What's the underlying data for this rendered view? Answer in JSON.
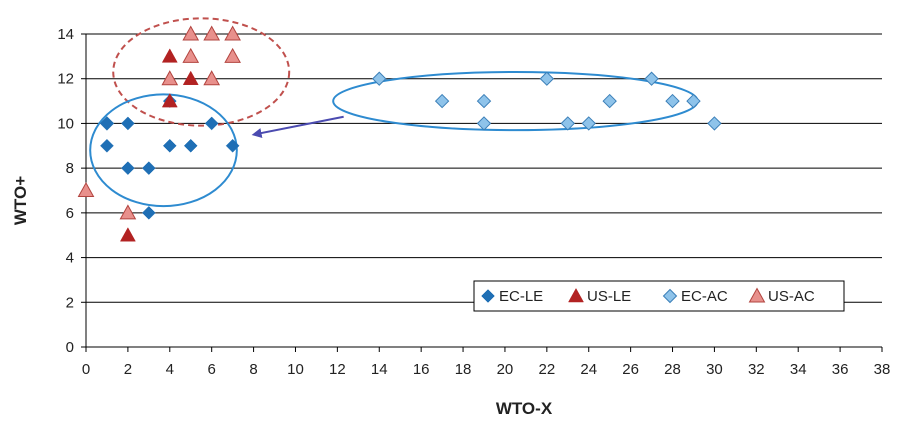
{
  "chart_data": {
    "type": "scatter",
    "xlabel": "WTO-X",
    "ylabel": "WTO+",
    "xlim": [
      0,
      38
    ],
    "ylim": [
      0,
      14
    ],
    "x_ticks": [
      0,
      2,
      4,
      6,
      8,
      10,
      12,
      14,
      16,
      18,
      20,
      22,
      24,
      26,
      28,
      30,
      32,
      34,
      36,
      38
    ],
    "y_ticks": [
      0,
      2,
      4,
      6,
      8,
      10,
      12,
      14
    ],
    "grid": "horizontal",
    "legend_placement": "bottom-right",
    "series": [
      {
        "name": "EC-LE",
        "marker": "diamond",
        "color": "#1f6fb5",
        "points": [
          [
            1,
            9
          ],
          [
            1,
            10
          ],
          [
            2,
            10
          ],
          [
            2,
            8
          ],
          [
            3,
            8
          ],
          [
            3,
            6
          ],
          [
            4,
            9
          ],
          [
            5,
            9
          ],
          [
            6,
            10
          ],
          [
            7,
            9
          ],
          [
            4,
            11
          ]
        ]
      },
      {
        "name": "US-LE",
        "marker": "triangle",
        "color": "#b22222",
        "points": [
          [
            2,
            5
          ],
          [
            4,
            13
          ],
          [
            4,
            11
          ],
          [
            5,
            12
          ]
        ]
      },
      {
        "name": "EC-AC",
        "marker": "diamond-hollow",
        "color": "#8ec3ea",
        "points": [
          [
            1,
            10
          ],
          [
            14,
            12
          ],
          [
            17,
            11
          ],
          [
            19,
            11
          ],
          [
            19,
            10
          ],
          [
            22,
            12
          ],
          [
            23,
            10
          ],
          [
            24,
            10
          ],
          [
            25,
            11
          ],
          [
            27,
            12
          ],
          [
            28,
            11
          ],
          [
            29,
            11
          ],
          [
            30,
            10
          ]
        ]
      },
      {
        "name": "US-AC",
        "marker": "triangle-hollow",
        "color": "#e8908c",
        "points": [
          [
            0,
            7
          ],
          [
            2,
            6
          ],
          [
            4,
            12
          ],
          [
            5,
            14
          ],
          [
            5,
            13
          ],
          [
            6,
            14
          ],
          [
            6,
            12
          ],
          [
            7,
            14
          ],
          [
            7,
            13
          ]
        ]
      }
    ],
    "annotations": [
      {
        "kind": "ellipse-dashed",
        "color": "#c0504d",
        "center": [
          5.5,
          12.3
        ],
        "radius": [
          4.2,
          2.4
        ]
      },
      {
        "kind": "ellipse",
        "color": "#2e8bd0",
        "center": [
          3.7,
          8.8
        ],
        "radius": [
          3.5,
          2.5
        ]
      },
      {
        "kind": "ellipse",
        "color": "#2e8bd0",
        "center": [
          20.5,
          11.0
        ],
        "radius": [
          8.7,
          1.3
        ]
      },
      {
        "kind": "arrow",
        "color": "#4b4bb0",
        "from": [
          12.3,
          10.3
        ],
        "to": [
          8.0,
          9.5
        ]
      }
    ]
  }
}
